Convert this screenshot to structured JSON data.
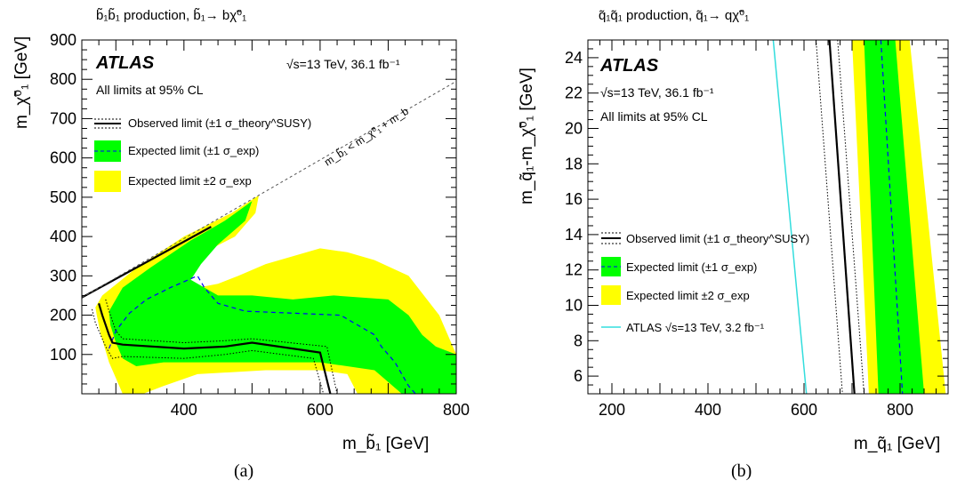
{
  "colors": {
    "green": "#00ff00",
    "yellow": "#ffff00",
    "cyan": "#33dddd",
    "dashed_blue": "#0000ff"
  },
  "panels": [
    {
      "caption": "(a)",
      "title": "b̃₁b̃₁ production, b̃₁→ bχ̃⁰₁",
      "experiment": "ATLAS",
      "energy_lumi": "√s=13 TeV, 36.1 fb⁻¹",
      "cl_text": "All limits at 95% CL",
      "xlabel": "m_b̃₁ [GeV]",
      "ylabel": "m_χ̃⁰₁ [GeV]",
      "diag_label": "m_b̃₁ < m_χ̃⁰₁ + m_b",
      "legend": [
        "Observed limit (±1 σ_theory^SUSY)",
        "Expected limit (±1 σ_exp)",
        "Expected limit ±2 σ_exp"
      ],
      "xticks": [
        "400",
        "600",
        "800"
      ],
      "yticks": [
        "100",
        "200",
        "300",
        "400",
        "500",
        "600",
        "700",
        "800",
        "900"
      ]
    },
    {
      "caption": "(b)",
      "title": "q̃₁q̃₁ production, q̃₁→ qχ̃⁰₁",
      "experiment": "ATLAS",
      "energy_lumi": "√s=13 TeV, 36.1 fb⁻¹",
      "cl_text": "All limits at 95% CL",
      "xlabel": "m_q̃₁ [GeV]",
      "ylabel": "m_q̃₁-m_χ̃⁰₁ [GeV]",
      "legend": [
        "Observed limit (±1 σ_theory^SUSY)",
        "Expected limit (±1 σ_exp)",
        "Expected limit ±2 σ_exp",
        "ATLAS √s=13 TeV, 3.2 fb⁻¹"
      ],
      "xticks": [
        "200",
        "400",
        "600",
        "800"
      ],
      "yticks": [
        "6",
        "8",
        "10",
        "12",
        "14",
        "16",
        "18",
        "20",
        "22",
        "24"
      ]
    }
  ],
  "chart_data": [
    {
      "type": "area",
      "title": "b̃₁b̃₁ production, b̃₁→ bχ̃⁰₁",
      "xlabel": "m_b̃₁ [GeV]",
      "ylabel": "m_χ̃⁰₁ [GeV]",
      "xlim": [
        250,
        800
      ],
      "ylim": [
        0,
        900
      ],
      "kinematic_boundary": [
        [
          250,
          245
        ],
        [
          800,
          795
        ]
      ],
      "series": [
        {
          "name": "Expected limit ±2 σ_exp",
          "kind": "band",
          "polygon": [
            [
              270,
              220
            ],
            [
              280,
              250
            ],
            [
              330,
              320
            ],
            [
              400,
              400
            ],
            [
              470,
              460
            ],
            [
              510,
              505
            ],
            [
              505,
              460
            ],
            [
              475,
              400
            ],
            [
              430,
              360
            ],
            [
              405,
              300
            ],
            [
              420,
              270
            ],
            [
              450,
              280
            ],
            [
              480,
              300
            ],
            [
              520,
              330
            ],
            [
              560,
              350
            ],
            [
              600,
              370
            ],
            [
              640,
              360
            ],
            [
              680,
              340
            ],
            [
              730,
              300
            ],
            [
              775,
              200
            ],
            [
              800,
              100
            ],
            [
              800,
              0
            ],
            [
              655,
              0
            ],
            [
              640,
              50
            ],
            [
              600,
              60
            ],
            [
              520,
              60
            ],
            [
              420,
              50
            ],
            [
              370,
              20
            ],
            [
              340,
              0
            ],
            [
              310,
              0
            ],
            [
              290,
              80
            ],
            [
              278,
              150
            ],
            [
              272,
              200
            ]
          ]
        },
        {
          "name": "Expected limit (±1 σ_exp)",
          "kind": "band",
          "polygon": [
            [
              290,
              210
            ],
            [
              310,
              270
            ],
            [
              350,
              320
            ],
            [
              410,
              390
            ],
            [
              460,
              440
            ],
            [
              500,
              490
            ],
            [
              490,
              440
            ],
            [
              450,
              380
            ],
            [
              425,
              330
            ],
            [
              410,
              290
            ],
            [
              450,
              250
            ],
            [
              500,
              250
            ],
            [
              560,
              240
            ],
            [
              620,
              250
            ],
            [
              700,
              240
            ],
            [
              730,
              200
            ],
            [
              750,
              150
            ],
            [
              770,
              120
            ],
            [
              800,
              100
            ],
            [
              800,
              0
            ],
            [
              720,
              0
            ],
            [
              680,
              60
            ],
            [
              600,
              80
            ],
            [
              520,
              80
            ],
            [
              440,
              80
            ],
            [
              370,
              80
            ],
            [
              330,
              70
            ],
            [
              310,
              90
            ],
            [
              300,
              130
            ],
            [
              292,
              175
            ]
          ]
        },
        {
          "name": "Expected limit (median)",
          "kind": "dashed",
          "points": [
            [
              290,
              115
            ],
            [
              300,
              160
            ],
            [
              320,
              205
            ],
            [
              345,
              240
            ],
            [
              380,
              270
            ],
            [
              420,
              300
            ],
            [
              430,
              270
            ],
            [
              450,
              230
            ],
            [
              490,
              210
            ],
            [
              560,
              205
            ],
            [
              630,
              200
            ],
            [
              650,
              180
            ],
            [
              680,
              150
            ],
            [
              690,
              120
            ],
            [
              710,
              80
            ],
            [
              730,
              20
            ],
            [
              740,
              0
            ]
          ]
        },
        {
          "name": "Observed limit (±1 σ_theory^SUSY)",
          "kind": "solid",
          "points": [
            [
              275,
              230
            ],
            [
              280,
              200
            ],
            [
              290,
              150
            ],
            [
              295,
              130
            ],
            [
              310,
              125
            ],
            [
              400,
              115
            ],
            [
              460,
              120
            ],
            [
              500,
              130
            ],
            [
              600,
              105
            ],
            [
              615,
              0
            ]
          ]
        },
        {
          "name": "Observed limit (+1 σ_theory^SUSY)",
          "kind": "dotted",
          "points": [
            [
              265,
              215
            ],
            [
              270,
              180
            ],
            [
              285,
              120
            ],
            [
              295,
              90
            ],
            [
              310,
              95
            ],
            [
              400,
              90
            ],
            [
              460,
              100
            ],
            [
              500,
              110
            ],
            [
              590,
              90
            ],
            [
              605,
              0
            ]
          ]
        },
        {
          "name": "Observed limit (-1 σ_theory^SUSY)",
          "kind": "dotted",
          "points": [
            [
              285,
              240
            ],
            [
              290,
              210
            ],
            [
              300,
              160
            ],
            [
              310,
              140
            ],
            [
              400,
              130
            ],
            [
              460,
              135
            ],
            [
              500,
              140
            ],
            [
              610,
              120
            ],
            [
              625,
              0
            ]
          ]
        },
        {
          "name": "Observed limit (diagonal)",
          "kind": "solid",
          "points": [
            [
              250,
              245
            ],
            [
              440,
              425
            ]
          ]
        }
      ]
    },
    {
      "type": "area",
      "title": "q̃₁q̃₁ production, q̃₁→ qχ̃⁰₁",
      "xlabel": "m_q̃₁ [GeV]",
      "ylabel": "m_q̃₁-m_χ̃⁰₁ [GeV]",
      "xlim": [
        150,
        900
      ],
      "ylim": [
        5,
        25
      ],
      "series": [
        {
          "name": "Expected limit ±2 σ_exp",
          "kind": "band",
          "polygon": [
            [
              700,
              25
            ],
            [
              820,
              25
            ],
            [
              895,
              5
            ],
            [
              735,
              5
            ]
          ]
        },
        {
          "name": "Expected limit (±1 σ_exp)",
          "kind": "band",
          "polygon": [
            [
              725,
              25
            ],
            [
              790,
              25
            ],
            [
              850,
              5
            ],
            [
              755,
              5
            ]
          ]
        },
        {
          "name": "Expected limit (median)",
          "kind": "dashed",
          "points": [
            [
              760,
              25
            ],
            [
              805,
              5
            ]
          ]
        },
        {
          "name": "Observed limit (±1 σ_theory^SUSY)",
          "kind": "solid",
          "points": [
            [
              653,
              25
            ],
            [
              705,
              5
            ]
          ]
        },
        {
          "name": "Observed limit (-1 σ_theory^SUSY)",
          "kind": "dotted",
          "points": [
            [
              625,
              25
            ],
            [
              680,
              5
            ]
          ]
        },
        {
          "name": "Observed limit (+1 σ_theory^SUSY)",
          "kind": "dotted",
          "points": [
            [
              670,
              25
            ],
            [
              725,
              5
            ]
          ]
        },
        {
          "name": "ATLAS √s=13 TeV, 3.2 fb⁻¹",
          "kind": "cyan",
          "points": [
            [
              536,
              25
            ],
            [
              605,
              5
            ]
          ]
        }
      ]
    }
  ]
}
